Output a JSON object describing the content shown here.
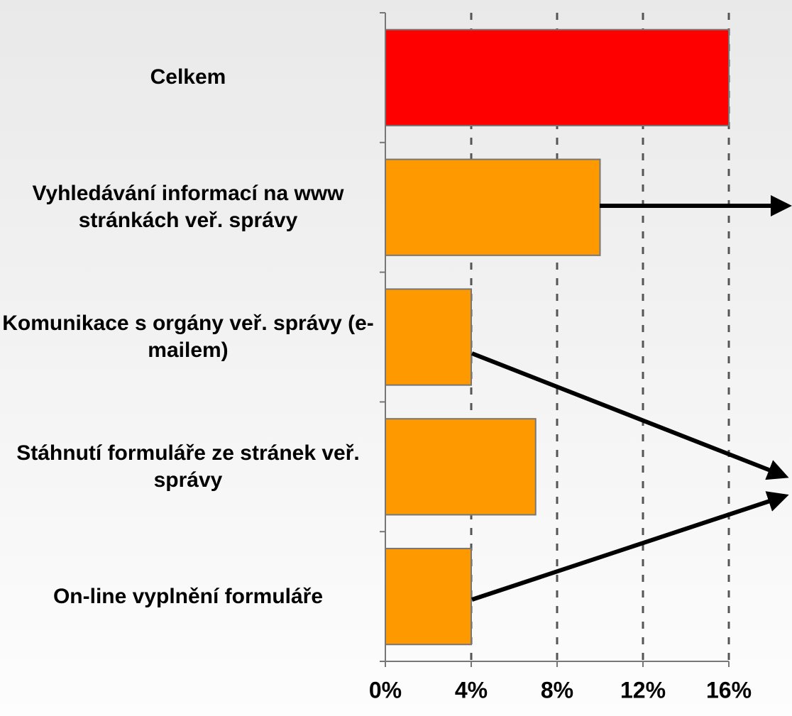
{
  "chart_data": {
    "type": "barh",
    "categories": [
      "Celkem",
      "Vyhledávání informací na www stránkách veř. správy",
      "Komunikace s orgány veř. správy (e-mailem)",
      "Stáhnutí formuláře ze stránek veř. správy",
      "On-line vyplnění formuláře"
    ],
    "values": [
      16,
      10,
      4,
      7,
      4
    ],
    "colors": [
      "#ff0000",
      "#ff9900",
      "#ff9900",
      "#ff9900",
      "#ff9900"
    ],
    "xlim": [
      0,
      16
    ],
    "xticks": [
      {
        "value": 0,
        "label": "0%"
      },
      {
        "value": 4,
        "label": "4%"
      },
      {
        "value": 8,
        "label": "8%"
      },
      {
        "value": 12,
        "label": "12%"
      },
      {
        "value": 16,
        "label": "16%"
      }
    ],
    "grid": true
  }
}
